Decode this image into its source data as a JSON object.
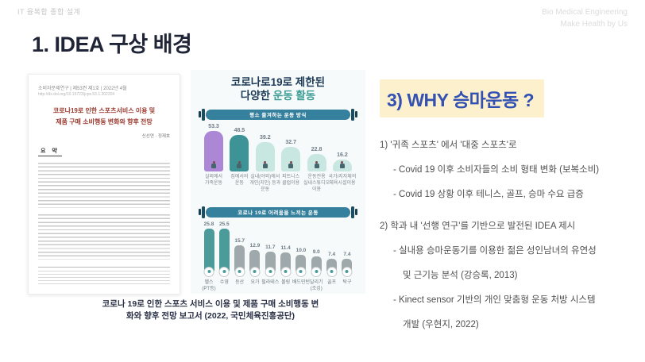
{
  "header": {
    "course": "IT 융복합 종합 설계",
    "brand_line1": "Bio Medical Engineering",
    "brand_line2": "Make Health by Us",
    "title": "1. IDEA 구상 배경"
  },
  "paper": {
    "journal_line": "소비자문제연구  |  제53권 제1호  |  2022년 4월",
    "doi_line": "http://dx.doi.org/10.15723/jcps.53.1.202204",
    "title_line1": "코로나19로 인한 스포츠서비스 이용 및",
    "title_line2": "제품 구매 소비행동 변화와 향후 전망",
    "authors": "신선연 · 정재호",
    "abstract_label": "요 약"
  },
  "infographic": {
    "title_line1": "코로나로19로 제한된",
    "title_line2_prefix": "다양한 ",
    "title_line2_accent": "운동 활동"
  },
  "chart_data": [
    {
      "type": "bar",
      "title": "평소 즐겨하는 운동 방식",
      "categories": [
        "실외에서\n가족운동",
        "집에서의\n운동",
        "실내(야외)에서\n개인(지인) 등과\n운동",
        "피트니스\n클럽이용",
        "운동전용\n실내스튜디오\n이용",
        "국가/지자체의\n체육시설이용"
      ],
      "values": [
        53.3,
        48.5,
        39.2,
        32.7,
        22.8,
        16.2
      ],
      "colors": [
        "#ab87d6",
        "#3e9397",
        "#c7e7e0",
        "#c7e7e0",
        "#c7e7e0",
        "#c7e7e0"
      ],
      "ylim": [
        0,
        60
      ],
      "legend": "none",
      "grid": false
    },
    {
      "type": "bar",
      "title": "코로나 19로 어려움을 느끼는 운동",
      "categories": [
        "헬스\n(PT등)",
        "수영",
        "등산",
        "요가",
        "필라테스",
        "볼링",
        "배드민턴",
        "달리기\n(조깅)",
        "골프",
        "탁구"
      ],
      "values": [
        25.8,
        25.5,
        15.7,
        12.9,
        11.7,
        11.4,
        10.0,
        9.0,
        7.4,
        7.4
      ],
      "colors": [
        "#4b9b9b",
        "#4b9b9b",
        "#9fa8aa",
        "#9fa8aa",
        "#9fa8aa",
        "#9fa8aa",
        "#9fa8aa",
        "#9fa8aa",
        "#9fa8aa",
        "#9fa8aa"
      ],
      "ylim": [
        0,
        30
      ],
      "legend": "none",
      "grid": false
    }
  ],
  "caption": {
    "line1": "코로나 19로 인한 스포츠 서비스 이용 및 제품 구매 소비행동 변",
    "line2": "화와 향후 전망 보고서 (2022, 국민체육진흥공단)"
  },
  "right": {
    "heading": "3) WHY 승마운동 ?",
    "point1": {
      "head": "1) '귀족 스포츠' 에서 '대중 스포츠'로",
      "sub1": "- Covid 19 이후 소비자들의 소비 형태 변화 (보복소비)",
      "sub2": "- Covid 19 상황 이후 테니스, 골프, 승마 수요 급증"
    },
    "point2": {
      "head": "2) 학과 내 '선행 연구'를 기반으로 발전된 IDEA 제시",
      "sub1_line1": "- 실내용 승마운동기를 이용한 젊은 성인남녀의 유연성",
      "sub1_line2": "및 근기능 분석 (강승록, 2013)",
      "sub2_line1": "- Kinect sensor 기반의 개인 맞춤형 운동 처방 시스템",
      "sub2_line2": "개발 (우현지, 2022)"
    }
  }
}
